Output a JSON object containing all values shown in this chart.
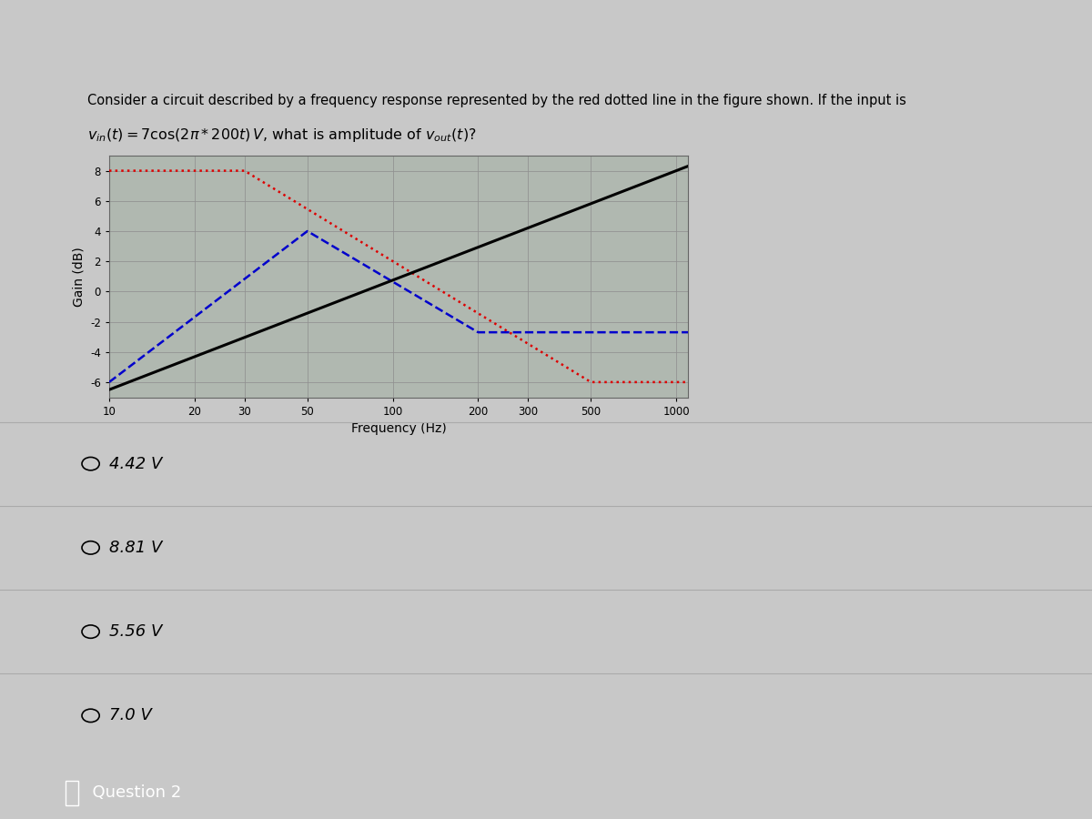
{
  "title_line1": "Consider a circuit described by a frequency response represented by the red dotted line in the figure shown. If the input is",
  "title_line2": "$v_{in}(t) = 7\\cos(2\\pi * 200t)\\,V$, what is amplitude of $v_{out}(t)$?",
  "xlabel": "Frequency (Hz)",
  "ylabel": "Gain (dB)",
  "ylim": [
    -7,
    9
  ],
  "xlim_log": [
    10,
    1100
  ],
  "xtick_positions": [
    10,
    20,
    30,
    50,
    100,
    200,
    300,
    500,
    1000
  ],
  "xtick_labels": [
    "10",
    "20",
    "30",
    "50",
    "100",
    "200",
    "300",
    "500",
    "1000"
  ],
  "ytick_positions": [
    -6,
    -4,
    -2,
    0,
    2,
    4,
    6,
    8
  ],
  "choices": [
    "4.42 V",
    "8.81 V",
    "5.56 V",
    "7.0 V"
  ],
  "footer": "Question 2",
  "bg_color": "#c8c8c8",
  "plot_bg_color": "#b0b8b0",
  "grid_color": "#909090",
  "red_dotted_color": "#dd0000",
  "blue_dashed_color": "#0000cc",
  "black_solid_color": "#000000",
  "choice_bg": "#d0d0d0",
  "footer_bg": "#1a1a1a",
  "footer_text_color": "#ffffff",
  "sep_color": "#aaaaaa"
}
